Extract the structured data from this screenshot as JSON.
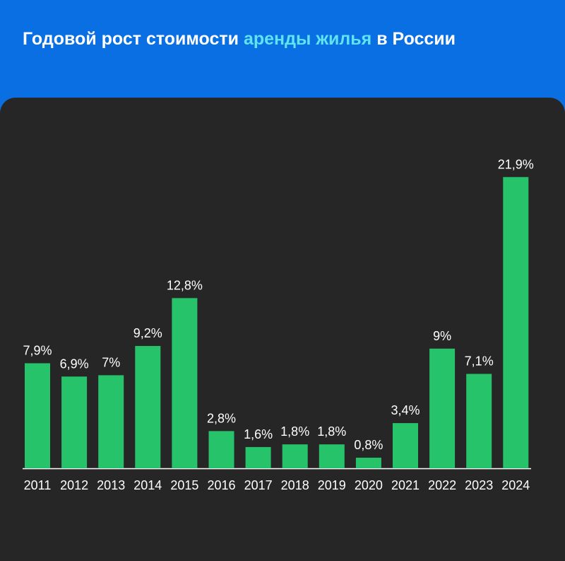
{
  "header": {
    "title_part1": "Годовой рост стоимости ",
    "title_accent": "аренды жилья",
    "title_part2": " в России"
  },
  "colors": {
    "header_bg": "#0b6fe4",
    "panel_bg": "#262626",
    "bar": "#26c36b",
    "accent_text": "#5ee3ef",
    "text": "#ffffff"
  },
  "chart_data": {
    "type": "bar",
    "categories": [
      "2011",
      "2012",
      "2013",
      "2014",
      "2015",
      "2016",
      "2017",
      "2018",
      "2019",
      "2020",
      "2021",
      "2022",
      "2023",
      "2024"
    ],
    "values": [
      7.9,
      6.9,
      7,
      9.2,
      12.8,
      2.8,
      1.6,
      1.8,
      1.8,
      0.8,
      3.4,
      9,
      7.1,
      21.9
    ],
    "data_labels": [
      "7,9%",
      "6,9%",
      "7%",
      "9,2%",
      "12,8%",
      "2,8%",
      "1,6%",
      "1,8%",
      "1,8%",
      "0,8%",
      "3,4%",
      "9%",
      "7,1%",
      "21,9%"
    ],
    "ylim": [
      0,
      22
    ],
    "grid": false,
    "legend": "none"
  }
}
